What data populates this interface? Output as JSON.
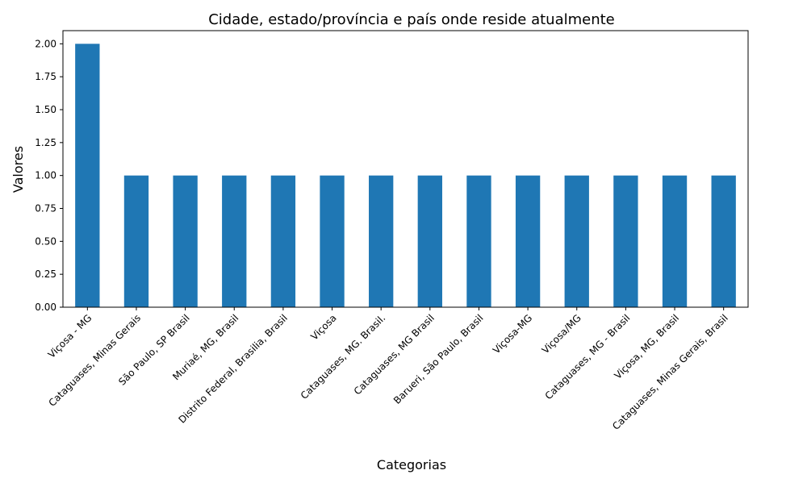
{
  "chart_data": {
    "type": "bar",
    "title": "Cidade, estado/província e país onde reside atualmente",
    "xlabel": "Categorias",
    "ylabel": "Valores",
    "categories": [
      "Viçosa - MG",
      "Cataguases, Minas Gerais",
      "São Paulo, SP Brasil",
      "Muriaé, MG, Brasil",
      "Distrito Federal, Brasilia, Brasil",
      "Viçosa",
      "Cataguases, MG. Brasil.",
      "Cataguases, MG Brasil",
      "Barueri, São Paulo, Brasil",
      "Viçosa-MG",
      "Viçosa/MG",
      "Cataguases, MG - Brasil",
      "Viçosa, MG, Brasil",
      "Cataguases, Minas Gerais, Brasil"
    ],
    "values": [
      2,
      1,
      1,
      1,
      1,
      1,
      1,
      1,
      1,
      1,
      1,
      1,
      1,
      1
    ],
    "ylim": [
      0,
      2.1
    ],
    "yticks": [
      "0.00",
      "0.25",
      "0.50",
      "0.75",
      "1.00",
      "1.25",
      "1.50",
      "1.75",
      "2.00"
    ],
    "bar_color": "#1f77b4",
    "grid": false
  }
}
